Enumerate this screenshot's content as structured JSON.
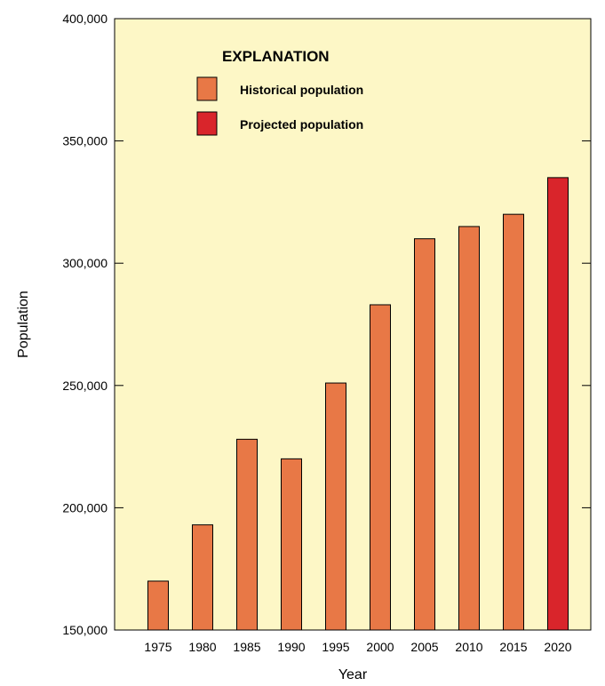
{
  "chart_data": {
    "type": "bar",
    "categories": [
      "1975",
      "1980",
      "1985",
      "1990",
      "1995",
      "2000",
      "2005",
      "2010",
      "2015",
      "2020"
    ],
    "values": [
      170000,
      193000,
      228000,
      220000,
      251000,
      283000,
      310000,
      315000,
      320000,
      335000
    ],
    "bar_kinds": [
      "historical",
      "historical",
      "historical",
      "historical",
      "historical",
      "historical",
      "historical",
      "historical",
      "historical",
      "projected"
    ],
    "xlabel": "Year",
    "ylabel": "Population",
    "ylim": [
      150000,
      400000
    ],
    "yticks": [
      150000,
      200000,
      250000,
      300000,
      350000,
      400000
    ],
    "ytick_labels": [
      "150,000",
      "200,000",
      "250,000",
      "300,000",
      "350,000",
      "400,000"
    ],
    "grid": false,
    "plot_background": "#fdf7c6",
    "legend": {
      "title": "EXPLANATION",
      "placement": "top-left",
      "entries": [
        {
          "kind": "historical",
          "label": "Historical population",
          "color": "#e87846"
        },
        {
          "kind": "projected",
          "label": "Projected population",
          "color": "#d9252b"
        }
      ]
    }
  }
}
